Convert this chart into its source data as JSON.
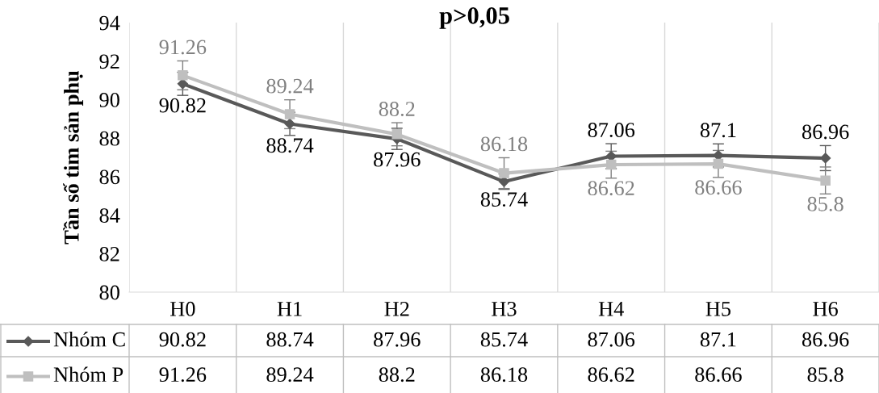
{
  "chart_data": {
    "type": "line",
    "title": "p>0,05",
    "ylabel": "Tần số tim sản phụ",
    "categories": [
      "H0",
      "H1",
      "H2",
      "H3",
      "H4",
      "H5",
      "H6"
    ],
    "series": [
      {
        "name": "Nhóm C",
        "color": "#595959",
        "marker": "diamond",
        "values": [
          90.82,
          88.74,
          87.96,
          85.74,
          87.06,
          87.1,
          86.96
        ],
        "errors": [
          0.6,
          0.6,
          0.55,
          0.4,
          0.65,
          0.6,
          0.65
        ]
      },
      {
        "name": "Nhóm P",
        "color": "#bfbfbf",
        "marker": "square",
        "values": [
          91.26,
          89.24,
          88.2,
          86.18,
          86.62,
          86.66,
          85.8
        ],
        "errors": [
          0.75,
          0.75,
          0.6,
          0.8,
          0.7,
          0.7,
          0.7
        ]
      }
    ],
    "annotations": [
      {
        "text": "90.82",
        "x": "H0",
        "y": 90.82
      },
      {
        "text": "88.74",
        "x": "H1",
        "y": 88.74
      },
      {
        "text": "87.96",
        "x": "H2",
        "y": 87.96
      },
      {
        "text": "85.74",
        "x": "H3",
        "y": 85.74
      },
      {
        "text": "87.06",
        "x": "H4",
        "y": 87.06
      },
      {
        "text": "87.1",
        "x": "H5",
        "y": 87.1
      },
      {
        "text": "86.96",
        "x": "H6",
        "y": 86.96
      },
      {
        "text": "91.26",
        "x": "H0",
        "y": 91.26
      },
      {
        "text": "89.24",
        "x": "H1",
        "y": 89.24
      },
      {
        "text": "88.2",
        "x": "H2",
        "y": 88.2
      },
      {
        "text": "86.18",
        "x": "H3",
        "y": 86.18
      },
      {
        "text": "86.62",
        "x": "H4",
        "y": 86.62
      },
      {
        "text": "86.66",
        "x": "H5",
        "y": 86.66
      },
      {
        "text": "85.8",
        "x": "H6",
        "y": 85.8
      }
    ],
    "ylim": [
      80,
      94
    ],
    "yticks": [
      80,
      82,
      84,
      86,
      88,
      90,
      92,
      94
    ],
    "grid": "x",
    "data_labels": true,
    "legend": "bottom",
    "line_style": "solid"
  }
}
